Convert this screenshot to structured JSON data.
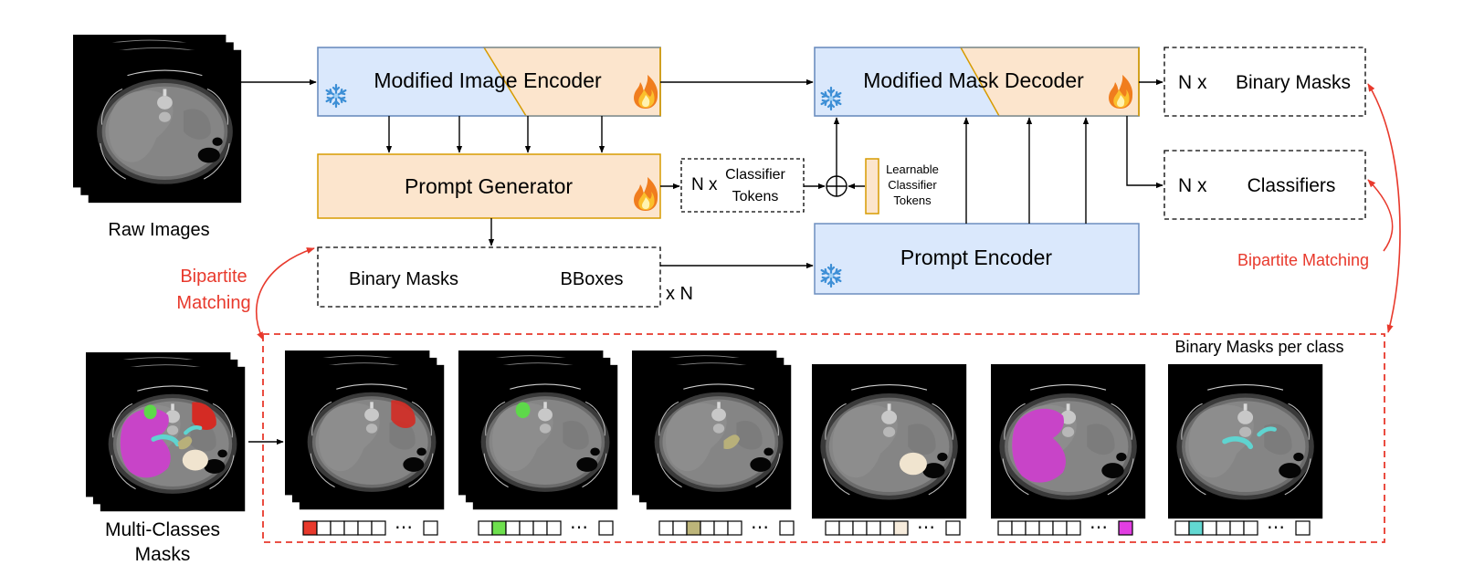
{
  "raw_images_label": "Raw Images",
  "image_encoder": {
    "label": "Modified Image Encoder",
    "frozen_icon": "snowflake-icon",
    "trainable_icon": "fire-icon"
  },
  "mask_decoder": {
    "label": "Modified Mask Decoder",
    "frozen_icon": "snowflake-icon",
    "trainable_icon": "fire-icon"
  },
  "prompt_generator": {
    "label": "Prompt Generator",
    "trainable_icon": "fire-icon"
  },
  "prompt_encoder": {
    "label": "Prompt Encoder",
    "frozen_icon": "snowflake-icon"
  },
  "classifier_tokens": {
    "prefix": "N x",
    "line1": "Classifier",
    "line2": "Tokens"
  },
  "learnable_tokens": {
    "line1": "Learnable",
    "line2": "Classifier",
    "line3": "Tokens"
  },
  "prompt_outputs": {
    "masks": "Binary Masks",
    "bboxes": "BBoxes",
    "multiplier": "x N"
  },
  "outputs": {
    "binary_masks": {
      "prefix": "N x",
      "label": "Binary Masks"
    },
    "classifiers": {
      "prefix": "N x",
      "label": "Classifiers"
    }
  },
  "bipartite_left": {
    "line1": "Bipartite",
    "line2": "Matching"
  },
  "bipartite_right": "Bipartite Matching",
  "per_class_label": "Binary Masks per class",
  "multi_class": {
    "line1": "Multi-Classes",
    "line2": "Masks"
  },
  "colors": {
    "frozen_fill": "#dae8fc",
    "frozen_stroke": "#6c8ebf",
    "trainable_fill": "#fce5cd",
    "trainable_stroke": "#d79b00",
    "accent_red": "#e8392c",
    "class_red": "#d42b24",
    "class_green": "#5ed84a",
    "class_khaki": "#b8b07a",
    "class_cream": "#f0e4cf",
    "class_magenta": "#d42ad4",
    "class_cyan": "#5fd4d0"
  },
  "class_masks": [
    {
      "one_hot_index": 1,
      "color": "#e8392c"
    },
    {
      "one_hot_index": 2,
      "color": "#6ee04e"
    },
    {
      "one_hot_index": 3,
      "color": "#bdb57a"
    },
    {
      "one_hot_index": 6,
      "color": "#f7ecdc"
    },
    {
      "one_hot_index": 7,
      "color": "#e23ee2"
    },
    {
      "one_hot_index": 2,
      "color": "#62d8d2"
    }
  ],
  "ellipsis": "⋯"
}
